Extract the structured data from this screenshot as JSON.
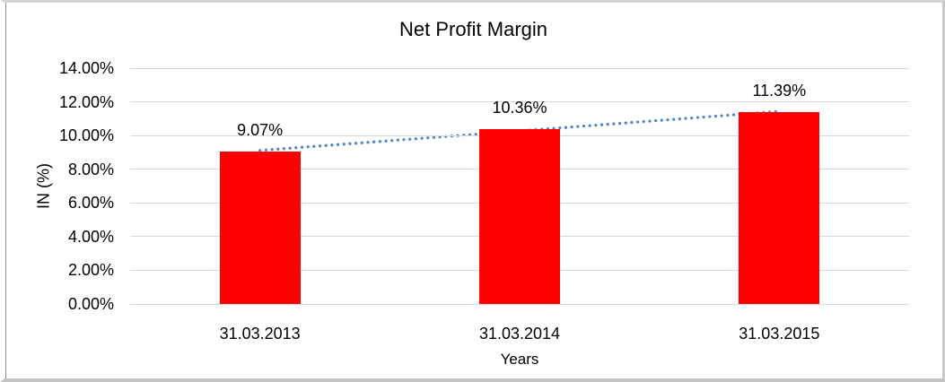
{
  "chart_data": {
    "type": "bar",
    "title": "Net Profit Margin",
    "xlabel": "Years",
    "ylabel": "IN (%)",
    "categories": [
      "31.03.2013",
      "31.03.2014",
      "31.03.2015"
    ],
    "values": [
      9.07,
      10.36,
      11.39
    ],
    "data_labels": [
      "9.07%",
      "10.36%",
      "11.39%"
    ],
    "ylim": [
      0,
      14
    ],
    "ytick_step": 2,
    "ytick_labels": [
      "0.00%",
      "2.00%",
      "4.00%",
      "6.00%",
      "8.00%",
      "10.00%",
      "12.00%",
      "14.00%"
    ],
    "grid": true,
    "legend_position": "none",
    "bar_color": "#ff0000",
    "gridline_color": "#d9d9d9",
    "trendline": {
      "type": "linear",
      "style": "dotted",
      "color": "#4f87c7"
    }
  }
}
